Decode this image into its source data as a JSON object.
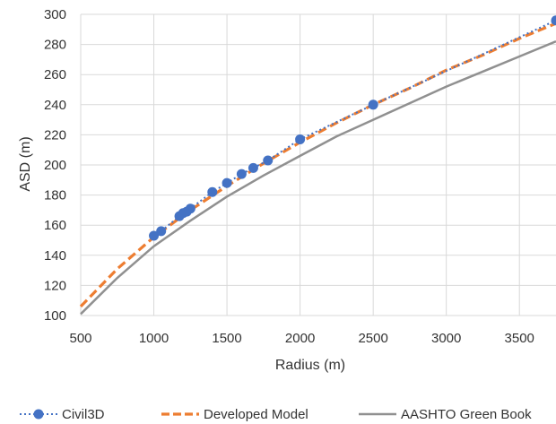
{
  "chart_data": {
    "type": "line",
    "title": "",
    "xlabel": "Radius (m)",
    "ylabel": "ASD (m)",
    "xlim": [
      500,
      3750
    ],
    "ylim": [
      100,
      300
    ],
    "x_ticks": [
      500,
      1000,
      1500,
      2000,
      2500,
      3000,
      3500
    ],
    "y_ticks": [
      100,
      120,
      140,
      160,
      180,
      200,
      220,
      240,
      260,
      280,
      300
    ],
    "grid": true,
    "legend_position": "bottom",
    "series": [
      {
        "name": "Civil3D",
        "color": "#4472C4",
        "style": "dotted-with-markers",
        "points": [
          {
            "x": 1000,
            "y": 153
          },
          {
            "x": 1050,
            "y": 156
          },
          {
            "x": 1175,
            "y": 166
          },
          {
            "x": 1200,
            "y": 168
          },
          {
            "x": 1225,
            "y": 169
          },
          {
            "x": 1250,
            "y": 171
          },
          {
            "x": 1400,
            "y": 182
          },
          {
            "x": 1500,
            "y": 188
          },
          {
            "x": 1600,
            "y": 194
          },
          {
            "x": 1680,
            "y": 198
          },
          {
            "x": 1780,
            "y": 203
          },
          {
            "x": 2000,
            "y": 217
          },
          {
            "x": 2500,
            "y": 240
          },
          {
            "x": 3750,
            "y": 296
          }
        ]
      },
      {
        "name": "Developed Model",
        "color": "#ED7D31",
        "style": "dashed",
        "points": [
          {
            "x": 500,
            "y": 106
          },
          {
            "x": 750,
            "y": 131
          },
          {
            "x": 1000,
            "y": 152
          },
          {
            "x": 1250,
            "y": 170
          },
          {
            "x": 1500,
            "y": 186
          },
          {
            "x": 1750,
            "y": 201
          },
          {
            "x": 2000,
            "y": 215
          },
          {
            "x": 2250,
            "y": 228
          },
          {
            "x": 2500,
            "y": 240
          },
          {
            "x": 2750,
            "y": 251
          },
          {
            "x": 3000,
            "y": 263
          },
          {
            "x": 3250,
            "y": 273
          },
          {
            "x": 3500,
            "y": 284
          },
          {
            "x": 3750,
            "y": 294
          }
        ]
      },
      {
        "name": "AASHTO Green Book",
        "color": "#909090",
        "style": "solid",
        "points": [
          {
            "x": 500,
            "y": 101
          },
          {
            "x": 750,
            "y": 125
          },
          {
            "x": 1000,
            "y": 146
          },
          {
            "x": 1250,
            "y": 163
          },
          {
            "x": 1500,
            "y": 179
          },
          {
            "x": 1750,
            "y": 193
          },
          {
            "x": 2000,
            "y": 206
          },
          {
            "x": 2250,
            "y": 219
          },
          {
            "x": 2500,
            "y": 230
          },
          {
            "x": 2750,
            "y": 241
          },
          {
            "x": 3000,
            "y": 252
          },
          {
            "x": 3250,
            "y": 262
          },
          {
            "x": 3500,
            "y": 272
          },
          {
            "x": 3750,
            "y": 282
          }
        ]
      }
    ]
  }
}
